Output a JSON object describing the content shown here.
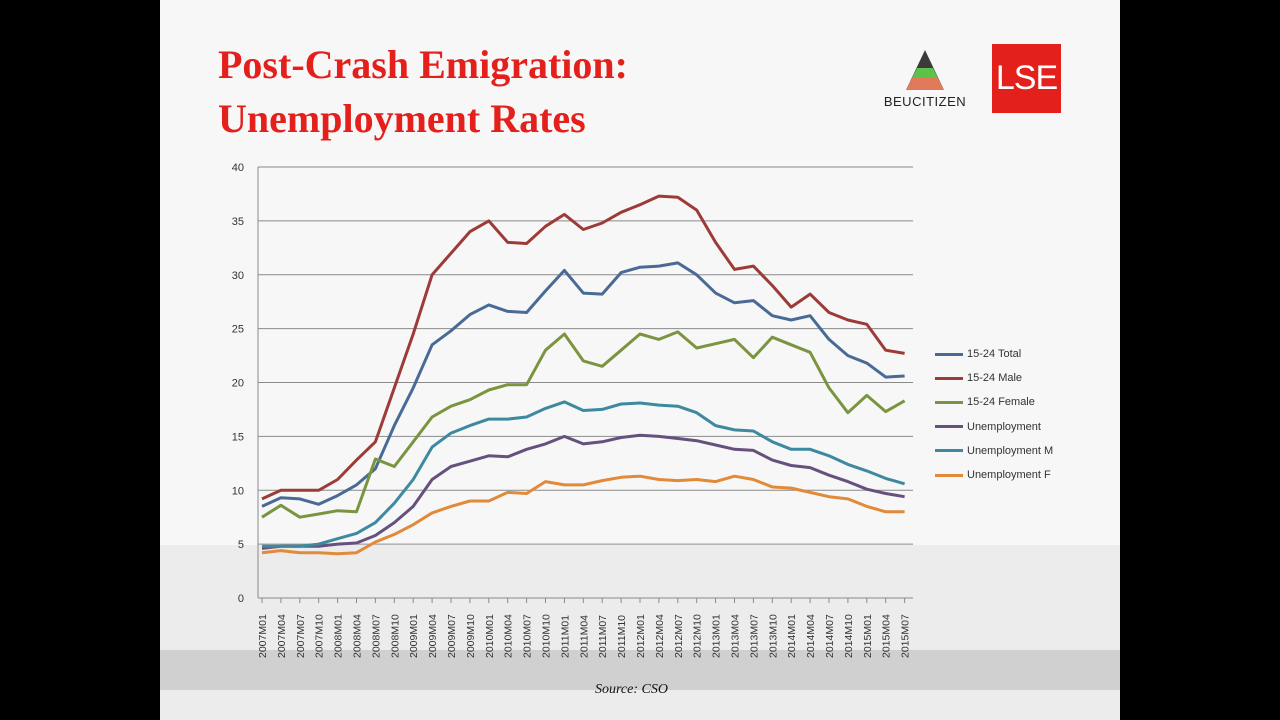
{
  "slide": {
    "title_line1": "Post-Crash Emigration:",
    "title_line2": "Unemployment Rates",
    "source": "Source: CSO"
  },
  "logos": {
    "beucitizen": "BEUCITIZEN",
    "lse": "LSE"
  },
  "chart_data": {
    "type": "line",
    "title": "",
    "xlabel": "",
    "ylabel": "",
    "ylim": [
      0,
      40
    ],
    "yticks": [
      0,
      5,
      10,
      15,
      20,
      25,
      30,
      35,
      40
    ],
    "grid": "horizontal",
    "legend": "right",
    "categories": [
      "2007M01",
      "2007M04",
      "2007M07",
      "2007M10",
      "2008M01",
      "2008M04",
      "2008M07",
      "2008M10",
      "2009M01",
      "2009M04",
      "2009M07",
      "2009M10",
      "2010M01",
      "2010M04",
      "2010M07",
      "2010M10",
      "2011M01",
      "2011M04",
      "2011M07",
      "2011M10",
      "2012M01",
      "2012M04",
      "2012M07",
      "2012M10",
      "2013M01",
      "2013M04",
      "2013M07",
      "2013M10",
      "2014M01",
      "2014M04",
      "2014M07",
      "2014M10",
      "2015M01",
      "2015M04",
      "2015M07"
    ],
    "series": [
      {
        "name": "15-24 Total",
        "color": "#4a6a96",
        "values": [
          8.5,
          9.3,
          9.2,
          8.7,
          9.5,
          10.5,
          12,
          16,
          19.5,
          23.5,
          24.8,
          26.3,
          27.2,
          26.6,
          26.5,
          28.5,
          30.4,
          28.3,
          28.2,
          30.2,
          30.7,
          30.8,
          31.1,
          30,
          28.3,
          27.4,
          27.6,
          26.2,
          25.8,
          26.2,
          24,
          22.5,
          21.8,
          20.5,
          20.6
        ]
      },
      {
        "name": "15-24 Male",
        "color": "#9c3b37",
        "values": [
          9.2,
          10,
          10,
          10,
          11,
          12.8,
          14.5,
          19.5,
          24.5,
          30,
          32,
          34,
          35,
          33,
          32.9,
          34.5,
          35.6,
          34.2,
          34.8,
          35.8,
          36.5,
          37.3,
          37.2,
          36,
          33,
          30.5,
          30.8,
          29,
          27,
          28.2,
          26.5,
          25.8,
          25.4,
          23,
          22.7
        ]
      },
      {
        "name": "15-24 Female",
        "color": "#7a9440",
        "values": [
          7.5,
          8.6,
          7.5,
          7.8,
          8.1,
          8,
          12.9,
          12.2,
          14.5,
          16.8,
          17.8,
          18.4,
          19.3,
          19.8,
          19.8,
          23,
          24.5,
          22,
          21.5,
          23,
          24.5,
          24,
          24.7,
          23.2,
          23.6,
          24,
          22.3,
          24.2,
          23.5,
          22.8,
          19.5,
          17.2,
          18.8,
          17.3,
          18.3
        ]
      },
      {
        "name": "Unemployment",
        "color": "#66507e",
        "values": [
          4.6,
          4.8,
          4.8,
          4.8,
          5,
          5.1,
          5.8,
          7,
          8.5,
          11,
          12.2,
          12.7,
          13.2,
          13.1,
          13.8,
          14.3,
          15,
          14.3,
          14.5,
          14.9,
          15.1,
          15,
          14.8,
          14.6,
          14.2,
          13.8,
          13.7,
          12.8,
          12.3,
          12.1,
          11.4,
          10.8,
          10.1,
          9.7,
          9.4
        ]
      },
      {
        "name": "Unemployment M",
        "color": "#3d8aa0",
        "values": [
          4.8,
          4.8,
          4.8,
          5,
          5.5,
          6,
          7,
          8.8,
          11,
          14,
          15.3,
          16,
          16.6,
          16.6,
          16.8,
          17.6,
          18.2,
          17.4,
          17.5,
          18,
          18.1,
          17.9,
          17.8,
          17.2,
          16,
          15.6,
          15.5,
          14.5,
          13.8,
          13.8,
          13.2,
          12.4,
          11.8,
          11.1,
          10.6
        ]
      },
      {
        "name": "Unemployment F",
        "color": "#e08a3a",
        "values": [
          4.2,
          4.4,
          4.2,
          4.2,
          4.1,
          4.2,
          5.2,
          5.9,
          6.8,
          7.9,
          8.5,
          9,
          9,
          9.8,
          9.7,
          10.8,
          10.5,
          10.5,
          10.9,
          11.2,
          11.3,
          11,
          10.9,
          11,
          10.8,
          11.3,
          11,
          10.3,
          10.2,
          9.8,
          9.4,
          9.2,
          8.5,
          8,
          8
        ]
      }
    ]
  }
}
